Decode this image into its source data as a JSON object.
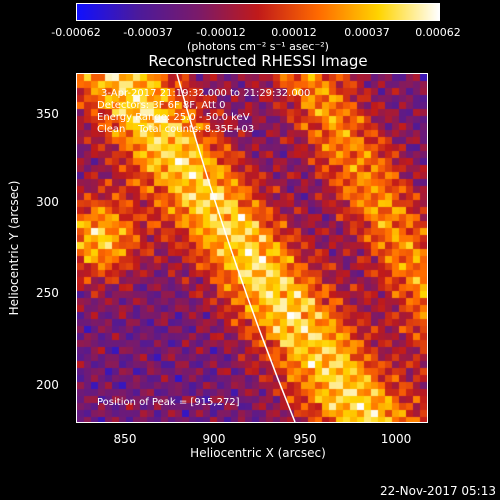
{
  "colorbar": {
    "ticks": [
      "-0.00062",
      "-0.00037",
      "-0.00012",
      "0.00012",
      "0.00037",
      "0.00062"
    ],
    "unit": "(photons cm⁻² s⁻¹ asec⁻²)",
    "colors": [
      "#1010ff",
      "#4b1a9c",
      "#7a1a6a",
      "#c01a1a",
      "#ff6a00",
      "#ffd400",
      "#ffffff"
    ]
  },
  "title": "Reconstructed RHESSI Image",
  "annotations": {
    "time": "3-Apr-2017 21:19:32.000 to 21:29:32.000",
    "detectors": "Detectors: 3F 6F 8F, Att 0",
    "energy": "Energy Range: 25.0 - 50.0 keV",
    "clean": "Clean    Total counts: 8.35E+03",
    "peak": "Position of Peak = [915,272]"
  },
  "axes": {
    "xlabel": "Heliocentric X (arcsec)",
    "ylabel": "Heliocentric Y (arcsec)",
    "xticks": [
      "850",
      "900",
      "950",
      "1000"
    ],
    "yticks": [
      "350",
      "300",
      "250",
      "200"
    ],
    "xlim": [
      822,
      1012
    ],
    "ylim": [
      178,
      372
    ]
  },
  "timestamp": "22-Nov-2017 05:13"
}
